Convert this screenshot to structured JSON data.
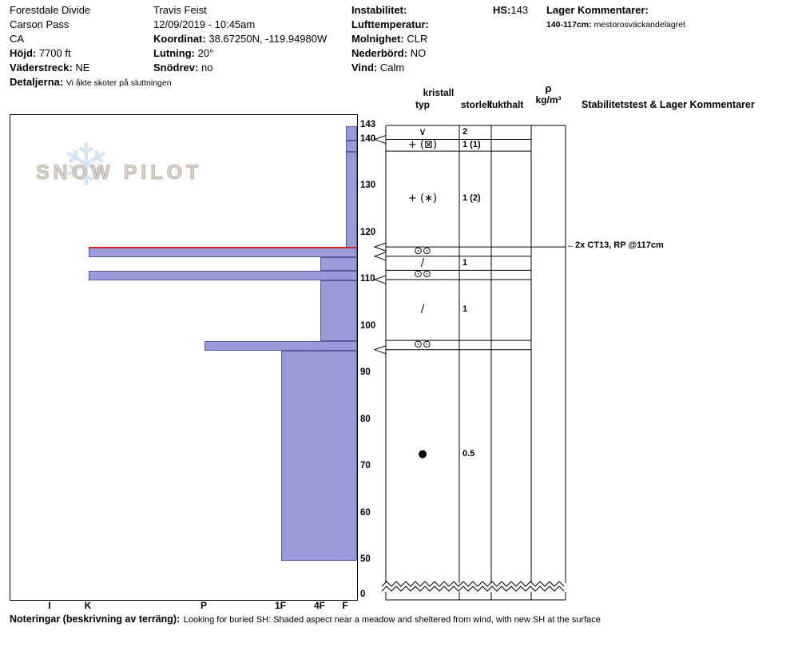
{
  "header": {
    "location": {
      "site": "Forestdale Divide",
      "area": "Carson Pass",
      "state": "CA",
      "elevation_label": "Höjd:",
      "elevation": "7700 ft",
      "aspect_label": "Väderstreck:",
      "aspect": "NE",
      "details_label": "Detaljerna:",
      "details": "Vi åkte skoter på sluttningen"
    },
    "observation": {
      "observer": "Travis Feist",
      "datetime": "12/09/2019 - 10:45am",
      "coordinates_label": "Koordinat:",
      "coordinates": "38.67250N, -119.94980W",
      "slope_label": "Lutning:",
      "slope": "20°",
      "drift_label": "Snödrev:",
      "drift": "no"
    },
    "weather": {
      "instability_label": "Instabilitet:",
      "air_temp_label": "Lufttemperatur:",
      "sky_label": "Molnighet:",
      "sky": "CLR",
      "precip_label": "Nederbörd:",
      "precip": "NO",
      "wind_label": "Vind:",
      "wind": "Calm"
    },
    "hs_label": "HS:",
    "hs_value": "143",
    "layer_comments": {
      "title": "Lager Kommentarer:",
      "range": "140-117cm:",
      "text": "mestorosväckandelagret"
    }
  },
  "logo": {
    "snowflake": "❄",
    "text": "SNOW PILOT"
  },
  "table_headers": {
    "crystal": "kristall",
    "type": "typ",
    "size": "storlek",
    "moisture": "fukthalt",
    "density_rho": "ρ",
    "density_unit": "kg/m³",
    "stability": "Stabilitetstest & Lager Kommentarer"
  },
  "footer": {
    "label": "Noteringar (beskrivning av terräng):",
    "text": "Looking for buried SH: Shaded aspect near a meadow and sheltered from wind, with new SH at the surface"
  },
  "chart_data": {
    "type": "bar",
    "subtype": "snow-hardness-profile",
    "title": "SnowPilot snowpit profile",
    "depth_unit": "cm",
    "total_depth_hs": 143,
    "depth_ticks": [
      143,
      140,
      130,
      120,
      110,
      100,
      90,
      80,
      70,
      60,
      50,
      0
    ],
    "scale_break_below_cm": 50,
    "hardness_categories": [
      "I",
      "K",
      "P",
      "1F",
      "4F",
      "F"
    ],
    "layers": [
      {
        "top_cm": 143,
        "bottom_cm": 140,
        "hardness": "F",
        "grain_type": "∨",
        "grain_size": "2"
      },
      {
        "top_cm": 140,
        "bottom_cm": 137.5,
        "hardness": "F",
        "grain_type": "+ (⊠)",
        "grain_size": "1 (1)"
      },
      {
        "top_cm": 137.5,
        "bottom_cm": 117,
        "hardness": "F",
        "grain_type": "+ (∗)",
        "grain_size": "1 (2)"
      },
      {
        "top_cm": 117,
        "bottom_cm": 115,
        "hardness": "K",
        "grain_type": "⊙⊙",
        "grain_size": "",
        "failure_plane": true
      },
      {
        "top_cm": 115,
        "bottom_cm": 112,
        "hardness": "4F",
        "grain_type": "/",
        "grain_size": "1"
      },
      {
        "top_cm": 112,
        "bottom_cm": 110,
        "hardness": "K",
        "grain_type": "⊙⊙",
        "grain_size": ""
      },
      {
        "top_cm": 110,
        "bottom_cm": 97,
        "hardness": "4F",
        "grain_type": "/",
        "grain_size": "1"
      },
      {
        "top_cm": 97,
        "bottom_cm": 95,
        "hardness": "P",
        "grain_type": "⊙⊙",
        "grain_size": ""
      },
      {
        "top_cm": 95,
        "bottom_cm": 50,
        "hardness": "1F",
        "grain_type": "●",
        "grain_size": "0.5"
      }
    ],
    "boundary_markers_cm": [
      140,
      117,
      115,
      110,
      95
    ],
    "stability_test": {
      "arrow": "←",
      "label": "2x CT13, RP @117cm",
      "depth_cm": 117
    },
    "colors": {
      "bar_fill": "#9b9ad8",
      "bar_border": "#58589e",
      "failure_line": "#cc2222"
    }
  }
}
